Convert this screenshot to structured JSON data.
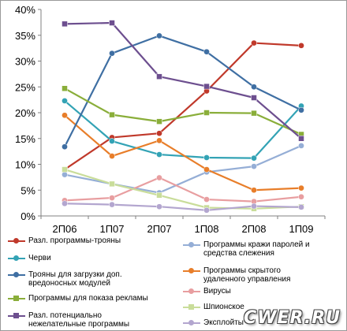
{
  "chart_data": {
    "type": "line",
    "categories": [
      "2П06",
      "1П07",
      "2П07",
      "1П08",
      "2П08",
      "1П09"
    ],
    "y_ticks": [
      "0%",
      "5%",
      "10%",
      "15%",
      "20%",
      "25%",
      "30%",
      "35%",
      "40%"
    ],
    "ylim": [
      0,
      40
    ],
    "grid": false,
    "legend_position": "bottom",
    "series": [
      {
        "name": "Разл. программы-трояны",
        "color": "#c0392b",
        "marker": "circle",
        "values": [
          9.0,
          15.2,
          16.0,
          24.2,
          33.5,
          33.0
        ]
      },
      {
        "name": "Программы кражи паролей и средства слежения",
        "color": "#95aed6",
        "marker": "circle",
        "values": [
          8.0,
          6.2,
          4.5,
          8.5,
          9.6,
          13.6
        ]
      },
      {
        "name": "Черви",
        "color": "#33a3b5",
        "marker": "circle",
        "values": [
          22.3,
          14.5,
          11.9,
          11.3,
          11.2,
          21.3
        ]
      },
      {
        "name": "Программы скрытого удаленного управления",
        "color": "#e87e2a",
        "marker": "circle",
        "values": [
          19.5,
          11.6,
          14.6,
          9.0,
          5.0,
          5.4
        ]
      },
      {
        "name": "Трояны для загрузки доп. вредоносных модулей",
        "color": "#3f6fa3",
        "marker": "circle",
        "values": [
          13.4,
          31.5,
          34.9,
          31.8,
          25.0,
          20.5
        ]
      },
      {
        "name": "Вирусы",
        "color": "#e89ea0",
        "marker": "circle",
        "values": [
          3.0,
          3.5,
          7.4,
          3.2,
          2.8,
          3.7
        ]
      },
      {
        "name": "Программы для показа рекламы",
        "color": "#8aae3a",
        "marker": "square",
        "values": [
          24.7,
          19.6,
          18.3,
          20.0,
          19.9,
          15.8
        ]
      },
      {
        "name": "Шпионское ПО",
        "color": "#c9dd9a",
        "marker": "square",
        "values": [
          9.0,
          6.2,
          4.0,
          1.6,
          1.4,
          1.8
        ]
      },
      {
        "name": "Разл. потенциально нежелательные программы",
        "color": "#6d4f8f",
        "marker": "square",
        "values": [
          37.2,
          37.4,
          27.0,
          25.1,
          22.9,
          15.0
        ]
      },
      {
        "name": "Эксплойты",
        "color": "#b3a6cf",
        "marker": "circle",
        "values": [
          2.4,
          2.2,
          1.8,
          1.1,
          1.9,
          1.7
        ]
      }
    ]
  },
  "legend": {
    "left": [
      {
        "text": "Разл. программы-трояны",
        "series": 0
      },
      {
        "text": "Черви",
        "series": 2
      },
      {
        "text": "Трояны для загрузки доп. вредоносных модулей",
        "series": 4
      },
      {
        "text": "Программы для показа рекламы",
        "series": 6
      },
      {
        "text": "Разл. потенциально нежелательные программы",
        "series": 8
      }
    ],
    "right": [
      {
        "text": "Программы кражи паролей и средства слежения",
        "series": 1
      },
      {
        "text": "Программы скрытого удаленного управления",
        "series": 3
      },
      {
        "text": "Вирусы",
        "series": 5
      },
      {
        "text": "Шпионское",
        "series": 7
      },
      {
        "text": "Эксплойты",
        "series": 9
      }
    ]
  },
  "watermark": "CWER.RU"
}
